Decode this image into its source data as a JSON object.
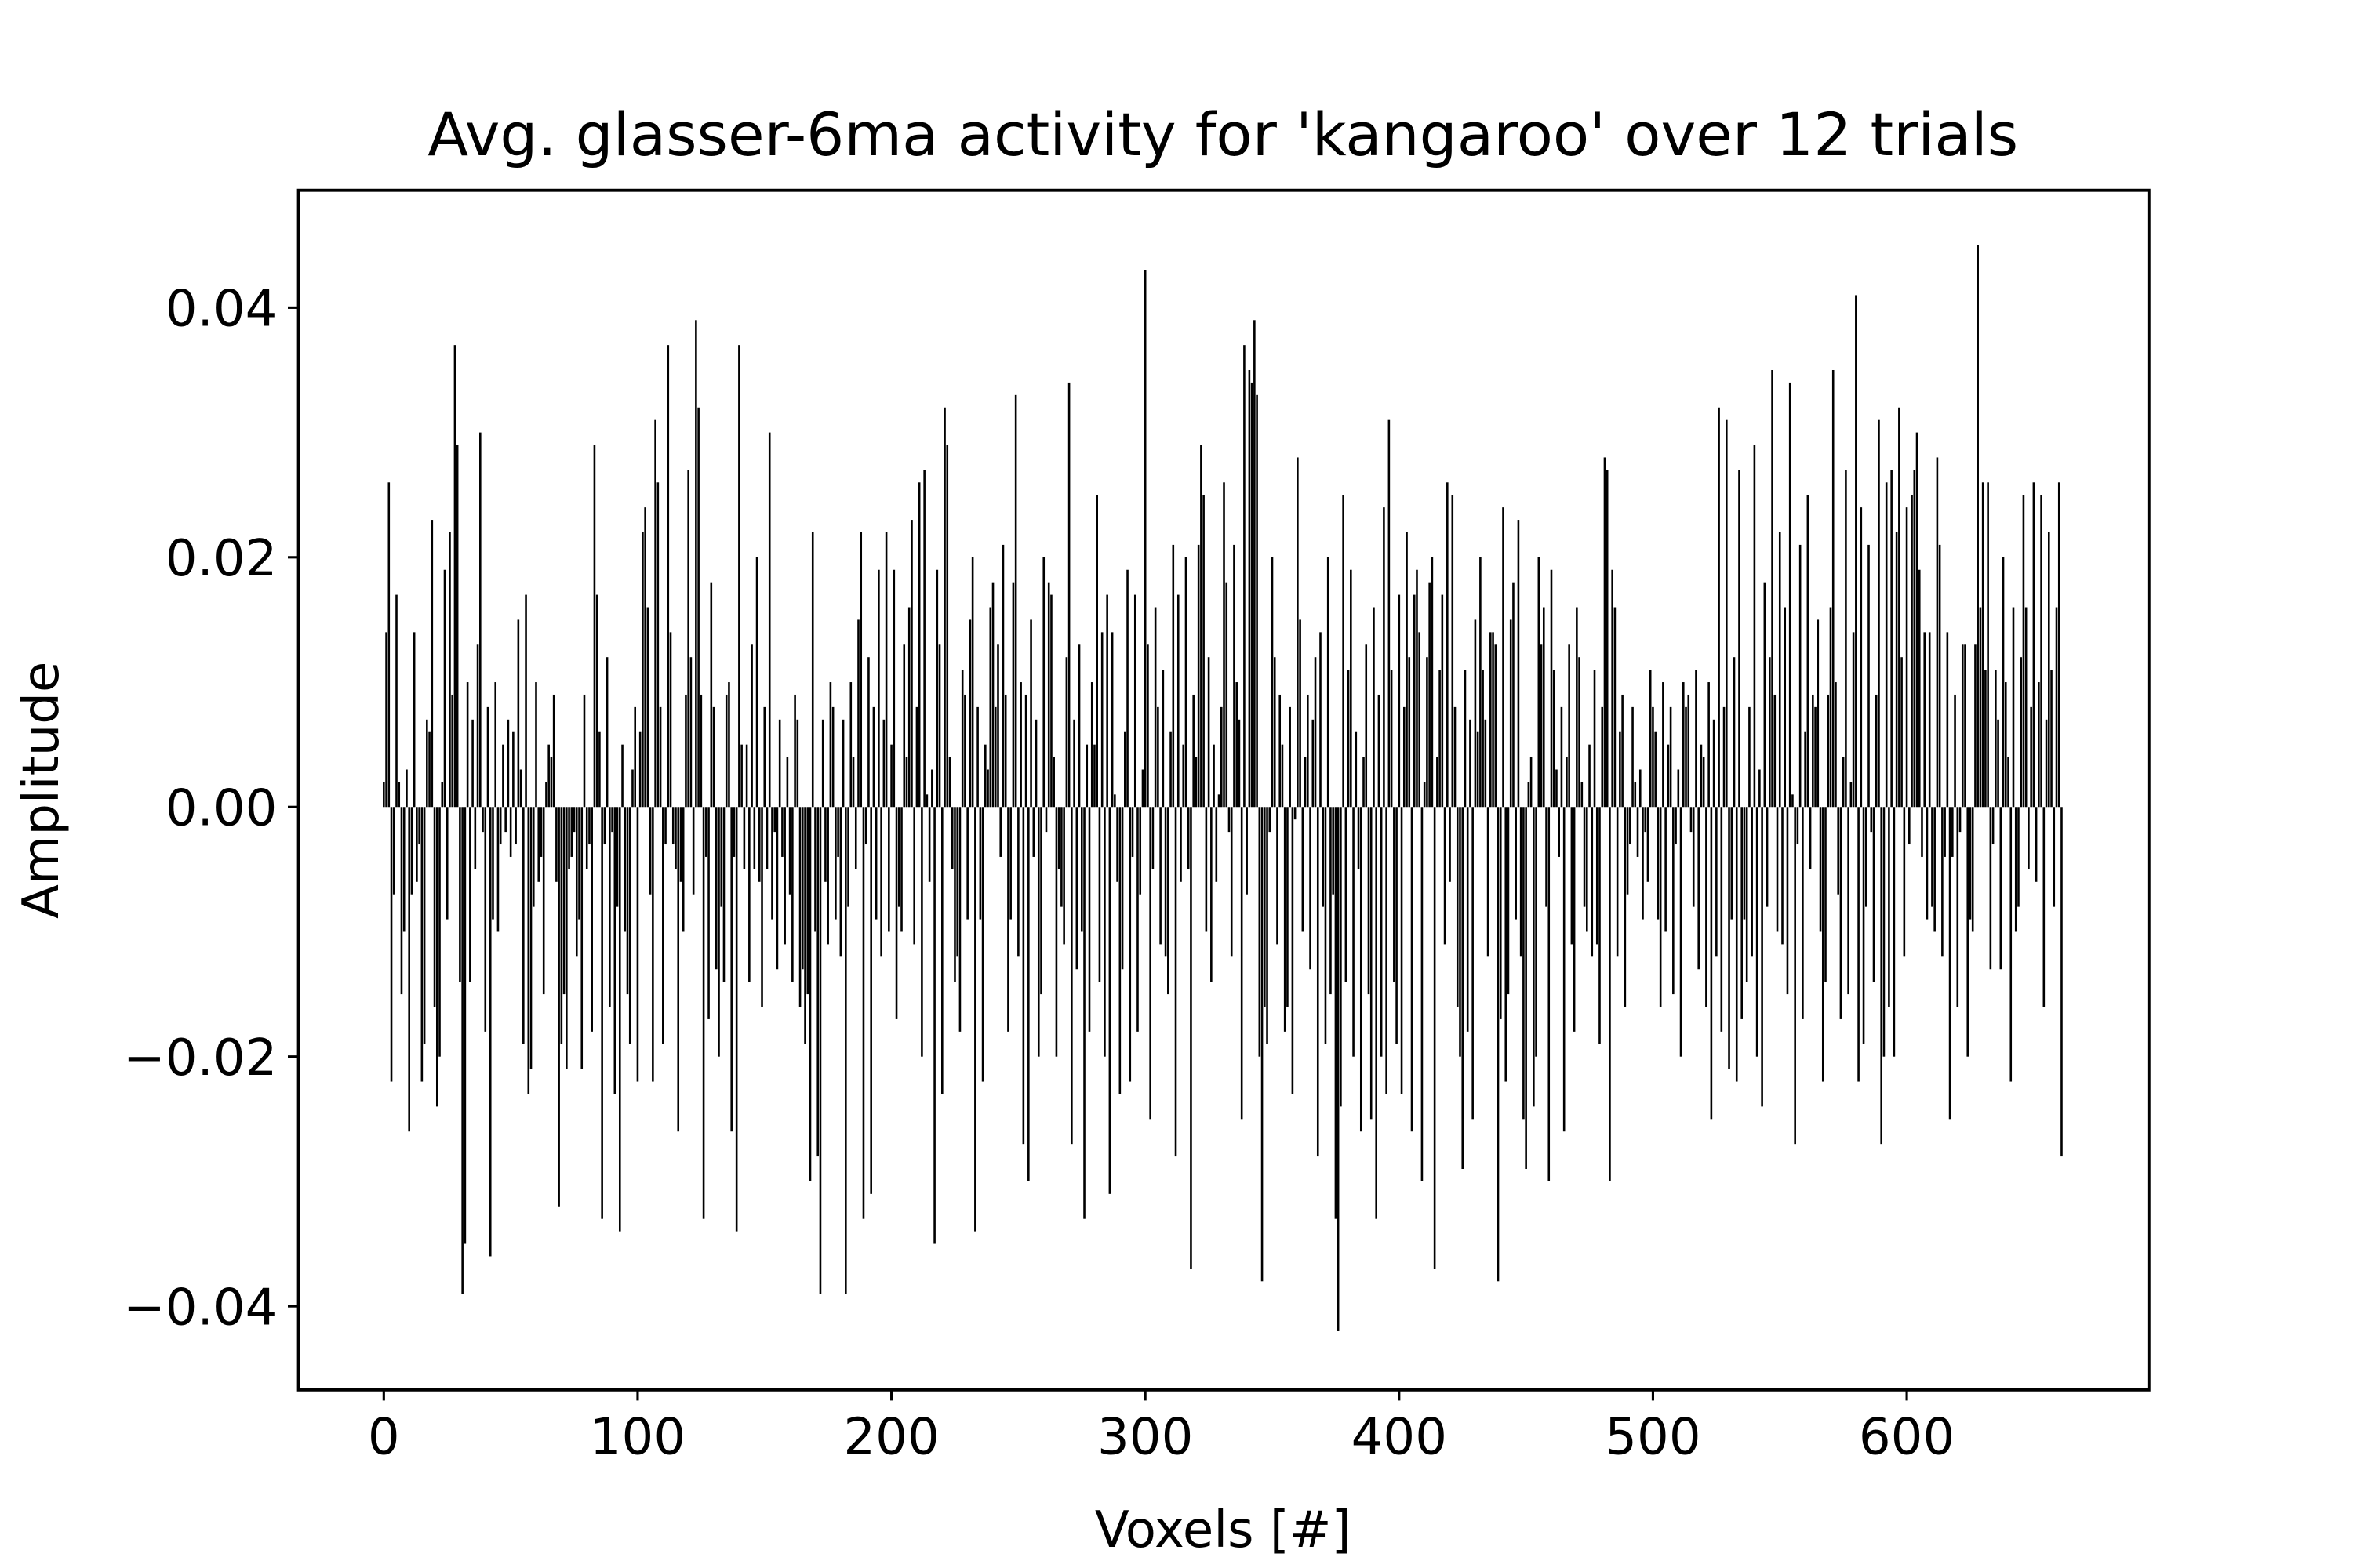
{
  "chart_data": {
    "type": "bar",
    "title": "Avg. glasser-6ma activity for 'kangaroo' over 12 trials",
    "xlabel": "Voxels [#]",
    "ylabel": "Amplitude",
    "color": "#000000",
    "xlim": [
      -33.6,
      695.4
    ],
    "ylim": [
      -0.0467,
      0.0494
    ],
    "xticks": [
      0,
      100,
      200,
      300,
      400,
      500,
      600
    ],
    "yticks": [
      {
        "value": -0.04,
        "label": "−0.04"
      },
      {
        "value": -0.02,
        "label": "−0.02"
      },
      {
        "value": 0,
        "label": "0.00"
      },
      {
        "value": 0.02,
        "label": "0.02"
      },
      {
        "value": 0.04,
        "label": "0.04"
      }
    ],
    "x": [
      0,
      1,
      2,
      3,
      4,
      5,
      6,
      7,
      8,
      9,
      10,
      11,
      12,
      13,
      14,
      15,
      16,
      17,
      18,
      19,
      20,
      21,
      22,
      23,
      24,
      25,
      26,
      27,
      28,
      29,
      30,
      31,
      32,
      33,
      34,
      35,
      36,
      37,
      38,
      39,
      40,
      41,
      42,
      43,
      44,
      45,
      46,
      47,
      48,
      49,
      50,
      51,
      52,
      53,
      54,
      55,
      56,
      57,
      58,
      59,
      60,
      61,
      62,
      63,
      64,
      65,
      66,
      67,
      68,
      69,
      70,
      71,
      72,
      73,
      74,
      75,
      76,
      77,
      78,
      79,
      80,
      81,
      82,
      83,
      84,
      85,
      86,
      87,
      88,
      89,
      90,
      91,
      92,
      93,
      94,
      95,
      96,
      97,
      98,
      99,
      100,
      101,
      102,
      103,
      104,
      105,
      106,
      107,
      108,
      109,
      110,
      111,
      112,
      113,
      114,
      115,
      116,
      117,
      118,
      119,
      120,
      121,
      122,
      123,
      124,
      125,
      126,
      127,
      128,
      129,
      130,
      131,
      132,
      133,
      134,
      135,
      136,
      137,
      138,
      139,
      140,
      141,
      142,
      143,
      144,
      145,
      146,
      147,
      148,
      149,
      150,
      151,
      152,
      153,
      154,
      155,
      156,
      157,
      158,
      159,
      160,
      161,
      162,
      163,
      164,
      165,
      166,
      167,
      168,
      169,
      170,
      171,
      172,
      173,
      174,
      175,
      176,
      177,
      178,
      179,
      180,
      181,
      182,
      183,
      184,
      185,
      186,
      187,
      188,
      189,
      190,
      191,
      192,
      193,
      194,
      195,
      196,
      197,
      198,
      199,
      200,
      201,
      202,
      203,
      204,
      205,
      206,
      207,
      208,
      209,
      210,
      211,
      212,
      213,
      214,
      215,
      216,
      217,
      218,
      219,
      220,
      221,
      222,
      223,
      224,
      225,
      226,
      227,
      228,
      229,
      230,
      231,
      232,
      233,
      234,
      235,
      236,
      237,
      238,
      239,
      240,
      241,
      242,
      243,
      244,
      245,
      246,
      247,
      248,
      249,
      250,
      251,
      252,
      253,
      254,
      255,
      256,
      257,
      258,
      259,
      260,
      261,
      262,
      263,
      264,
      265,
      266,
      267,
      268,
      269,
      270,
      271,
      272,
      273,
      274,
      275,
      276,
      277,
      278,
      279,
      280,
      281,
      282,
      283,
      284,
      285,
      286,
      287,
      288,
      289,
      290,
      291,
      292,
      293,
      294,
      295,
      296,
      297,
      298,
      299,
      300,
      301,
      302,
      303,
      304,
      305,
      306,
      307,
      308,
      309,
      310,
      311,
      312,
      313,
      314,
      315,
      316,
      317,
      318,
      319,
      320,
      321,
      322,
      323,
      324,
      325,
      326,
      327,
      328,
      329,
      330,
      331,
      332,
      333,
      334,
      335,
      336,
      337,
      338,
      339,
      340,
      341,
      342,
      343,
      344,
      345,
      346,
      347,
      348,
      349,
      350,
      351,
      352,
      353,
      354,
      355,
      356,
      357,
      358,
      359,
      360,
      361,
      362,
      363,
      364,
      365,
      366,
      367,
      368,
      369,
      370,
      371,
      372,
      373,
      374,
      375,
      376,
      377,
      378,
      379,
      380,
      381,
      382,
      383,
      384,
      385,
      386,
      387,
      388,
      389,
      390,
      391,
      392,
      393,
      394,
      395,
      396,
      397,
      398,
      399,
      400,
      401,
      402,
      403,
      404,
      405,
      406,
      407,
      408,
      409,
      410,
      411,
      412,
      413,
      414,
      415,
      416,
      417,
      418,
      419,
      420,
      421,
      422,
      423,
      424,
      425,
      426,
      427,
      428,
      429,
      430,
      431,
      432,
      433,
      434,
      435,
      436,
      437,
      438,
      439,
      440,
      441,
      442,
      443,
      444,
      445,
      446,
      447,
      448,
      449,
      450,
      451,
      452,
      453,
      454,
      455,
      456,
      457,
      458,
      459,
      460,
      461,
      462,
      463,
      464,
      465,
      466,
      467,
      468,
      469,
      470,
      471,
      472,
      473,
      474,
      475,
      476,
      477,
      478,
      479,
      480,
      481,
      482,
      483,
      484,
      485,
      486,
      487,
      488,
      489,
      490,
      491,
      492,
      493,
      494,
      495,
      496,
      497,
      498,
      499,
      500,
      501,
      502,
      503,
      504,
      505,
      506,
      507,
      508,
      509,
      510,
      511,
      512,
      513,
      514,
      515,
      516,
      517,
      518,
      519,
      520,
      521,
      522,
      523,
      524,
      525,
      526,
      527,
      528,
      529,
      530,
      531,
      532,
      533,
      534,
      535,
      536,
      537,
      538,
      539,
      540,
      541,
      542,
      543,
      544,
      545,
      546,
      547,
      548,
      549,
      550,
      551,
      552,
      553,
      554,
      555,
      556,
      557,
      558,
      559,
      560,
      561,
      562,
      563,
      564,
      565,
      566,
      567,
      568,
      569,
      570,
      571,
      572,
      573,
      574,
      575,
      576,
      577,
      578,
      579,
      580,
      581,
      582,
      583,
      584,
      585,
      586,
      587,
      588,
      589,
      590,
      591,
      592,
      593,
      594,
      595,
      596,
      597,
      598,
      599,
      600,
      601,
      602,
      603,
      604,
      605,
      606,
      607,
      608,
      609,
      610,
      611,
      612,
      613,
      614,
      615,
      616,
      617,
      618,
      619,
      620,
      621,
      622,
      623,
      624,
      625,
      626,
      627,
      628,
      629,
      630,
      631,
      632,
      633,
      634,
      635,
      636,
      637,
      638,
      639,
      640,
      641,
      642,
      643,
      644,
      645,
      646,
      647,
      648,
      649,
      650,
      651,
      652,
      653,
      654,
      655,
      656,
      657,
      658,
      659,
      660,
      661
    ],
    "values": [
      0.002,
      0.014,
      0.026,
      -0.022,
      -0.007,
      0.017,
      0.002,
      -0.015,
      -0.01,
      0.003,
      -0.026,
      -0.007,
      0.014,
      -0.006,
      -0.003,
      -0.022,
      -0.019,
      0.007,
      0.006,
      0.023,
      -0.016,
      -0.024,
      -0.02,
      0.002,
      0.019,
      -0.009,
      0.022,
      0.009,
      0.037,
      0.029,
      -0.014,
      -0.039,
      -0.035,
      0.01,
      -0.014,
      0.007,
      -0.005,
      0.013,
      0.03,
      -0.002,
      -0.018,
      0.008,
      -0.036,
      -0.009,
      0.01,
      -0.01,
      -0.003,
      0.005,
      -0.002,
      0.007,
      -0.004,
      0.006,
      -0.003,
      0.015,
      0.003,
      -0.019,
      0.017,
      -0.023,
      -0.021,
      -0.008,
      0.01,
      -0.006,
      -0.004,
      -0.015,
      0.002,
      0.005,
      0.004,
      0.009,
      -0.006,
      -0.032,
      -0.019,
      -0.015,
      -0.021,
      -0.005,
      -0.004,
      -0.002,
      -0.012,
      -0.009,
      -0.021,
      0.009,
      -0.005,
      -0.003,
      -0.018,
      0.029,
      0.017,
      0.006,
      -0.033,
      -0.003,
      0.012,
      -0.016,
      -0.002,
      -0.023,
      -0.008,
      -0.034,
      0.005,
      -0.01,
      -0.015,
      -0.019,
      0.003,
      0.008,
      -0.022,
      0.006,
      0.022,
      0.024,
      0.016,
      -0.007,
      -0.022,
      0.031,
      0.026,
      0.008,
      -0.019,
      -0.003,
      0.037,
      0.014,
      -0.003,
      -0.005,
      -0.026,
      -0.006,
      -0.01,
      0.009,
      0.027,
      0.012,
      -0.007,
      0.039,
      0.032,
      0.009,
      -0.033,
      -0.004,
      -0.017,
      0.018,
      0.008,
      -0.013,
      -0.02,
      -0.008,
      -0.014,
      0.009,
      0.01,
      -0.026,
      -0.004,
      -0.034,
      0.037,
      0.005,
      -0.005,
      0.005,
      -0.014,
      0.013,
      -0.005,
      0.02,
      -0.006,
      -0.016,
      0.008,
      -0.005,
      0.03,
      -0.009,
      -0.002,
      -0.013,
      0.007,
      -0.004,
      -0.011,
      0.004,
      -0.007,
      -0.014,
      0.009,
      0.007,
      -0.016,
      -0.013,
      -0.019,
      -0.015,
      -0.03,
      0.022,
      -0.01,
      -0.028,
      -0.039,
      0.007,
      -0.006,
      -0.011,
      0.01,
      0.008,
      -0.009,
      -0.004,
      -0.012,
      0.007,
      -0.039,
      -0.008,
      0.01,
      0.004,
      -0.005,
      0.015,
      0.022,
      -0.033,
      -0.003,
      0.012,
      -0.031,
      0.008,
      -0.009,
      0.019,
      -0.012,
      0.007,
      0.022,
      -0.01,
      0.005,
      0.019,
      -0.017,
      -0.008,
      -0.01,
      0.013,
      0.004,
      0.016,
      0.023,
      -0.011,
      0.008,
      0.026,
      -0.02,
      0.027,
      0.001,
      -0.006,
      0.003,
      -0.035,
      0.019,
      0.013,
      -0.023,
      0.032,
      0.029,
      0.004,
      -0.005,
      -0.014,
      -0.012,
      -0.018,
      0.011,
      0.009,
      -0.009,
      0.015,
      0.02,
      -0.034,
      0.008,
      -0.009,
      -0.022,
      0.005,
      0.003,
      0.016,
      0.018,
      0.008,
      0.013,
      -0.004,
      0.021,
      0.009,
      -0.018,
      -0.009,
      0.018,
      0.033,
      -0.012,
      0.01,
      -0.027,
      0.009,
      -0.03,
      0.015,
      -0.004,
      0.007,
      -0.02,
      -0.015,
      0.02,
      -0.002,
      0.018,
      0.017,
      0.004,
      -0.02,
      -0.005,
      -0.008,
      -0.011,
      0.012,
      0.034,
      -0.027,
      0.007,
      -0.013,
      0.013,
      -0.01,
      -0.033,
      0.005,
      -0.018,
      0.01,
      0.005,
      0.025,
      -0.014,
      0.014,
      -0.02,
      0.017,
      -0.031,
      0.014,
      0.001,
      -0.006,
      -0.023,
      -0.013,
      0.006,
      0.019,
      -0.022,
      -0.004,
      0.017,
      -0.018,
      -0.007,
      0.003,
      0.043,
      0.013,
      -0.025,
      -0.005,
      0.016,
      0.008,
      -0.011,
      0.011,
      -0.012,
      -0.015,
      0.006,
      0.021,
      -0.028,
      0.017,
      -0.006,
      0.005,
      0.02,
      -0.005,
      -0.037,
      0.009,
      0.004,
      0.021,
      0.029,
      0.025,
      -0.01,
      0.012,
      -0.014,
      0.005,
      -0.006,
      0.001,
      0.008,
      0.026,
      0.018,
      -0.002,
      -0.012,
      0.021,
      0.01,
      0.007,
      -0.025,
      0.037,
      -0.007,
      0.035,
      0.034,
      0.039,
      0.033,
      -0.02,
      -0.038,
      -0.016,
      -0.019,
      -0.002,
      0.02,
      0.012,
      -0.011,
      0.009,
      0.005,
      -0.018,
      -0.016,
      0.008,
      -0.023,
      -0.001,
      0.028,
      0.015,
      -0.01,
      0.004,
      0.009,
      -0.013,
      0.007,
      0.012,
      -0.028,
      0.014,
      -0.008,
      -0.019,
      0.02,
      -0.015,
      -0.007,
      -0.033,
      -0.042,
      -0.024,
      0.025,
      -0.014,
      0.011,
      0.019,
      -0.02,
      0.006,
      -0.005,
      -0.026,
      0.004,
      0.013,
      -0.015,
      -0.025,
      0.016,
      -0.033,
      0.009,
      -0.02,
      0.024,
      -0.023,
      0.031,
      0.011,
      -0.014,
      -0.019,
      0.017,
      -0.023,
      0.008,
      0.022,
      0.012,
      -0.026,
      0.017,
      0.019,
      0.014,
      -0.03,
      0.002,
      0.012,
      0.018,
      0.02,
      -0.037,
      0.004,
      0.011,
      0.017,
      -0.011,
      0.026,
      -0.006,
      0.025,
      0.008,
      -0.016,
      -0.02,
      -0.029,
      0.011,
      -0.018,
      0.007,
      -0.025,
      0.015,
      0.006,
      0.02,
      0.011,
      0.007,
      -0.012,
      0.014,
      0.014,
      0.013,
      -0.038,
      -0.017,
      0.024,
      -0.022,
      -0.015,
      0.015,
      0.018,
      -0.009,
      0.023,
      -0.012,
      -0.025,
      -0.029,
      0.002,
      0.004,
      -0.024,
      -0.02,
      0.02,
      0.013,
      0.016,
      -0.008,
      -0.03,
      0.019,
      0.011,
      0.003,
      -0.004,
      0.008,
      -0.026,
      0.004,
      0.013,
      -0.011,
      -0.018,
      0.016,
      0.012,
      0.002,
      -0.008,
      -0.01,
      0.005,
      -0.012,
      0.011,
      -0.011,
      -0.019,
      0.008,
      0.028,
      0.027,
      -0.03,
      0.019,
      0.016,
      -0.012,
      0.006,
      0.009,
      -0.016,
      -0.007,
      -0.003,
      0.008,
      0.002,
      -0.004,
      0.003,
      -0.009,
      -0.002,
      -0.006,
      0.011,
      0.008,
      0.006,
      -0.009,
      -0.016,
      0.01,
      -0.01,
      0.005,
      0.008,
      -0.015,
      -0.003,
      0.003,
      -0.02,
      0.01,
      0.008,
      0.009,
      -0.002,
      -0.008,
      0.011,
      -0.013,
      0.005,
      0.004,
      -0.016,
      0.01,
      -0.025,
      0.007,
      -0.012,
      0.032,
      -0.018,
      0.008,
      0.031,
      -0.021,
      -0.009,
      0.012,
      -0.022,
      0.027,
      -0.017,
      -0.009,
      -0.014,
      0.008,
      -0.012,
      0.029,
      -0.02,
      0.003,
      -0.024,
      0.018,
      -0.008,
      0.012,
      0.035,
      0.009,
      -0.01,
      0.022,
      -0.011,
      0.016,
      -0.015,
      0.034,
      0.001,
      -0.027,
      -0.003,
      0.021,
      -0.017,
      0.006,
      0.025,
      -0.005,
      0.009,
      0.008,
      0.015,
      -0.01,
      -0.022,
      -0.014,
      0.009,
      0.016,
      0.035,
      0.01,
      -0.007,
      -0.017,
      0.004,
      0.027,
      -0.015,
      0.002,
      0.014,
      0.041,
      -0.022,
      0.024,
      -0.019,
      -0.008,
      0.021,
      -0.002,
      -0.014,
      0.009,
      0.031,
      -0.027,
      -0.02,
      0.026,
      -0.016,
      0.027,
      -0.02,
      0.022,
      0.032,
      0.012,
      -0.012,
      0.024,
      -0.003,
      0.025,
      0.027,
      0.03,
      0.019,
      -0.004,
      0.014,
      -0.009,
      0.014,
      -0.008,
      -0.01,
      0.028,
      0.021,
      -0.012,
      -0.004,
      0.014,
      -0.025,
      -0.004,
      0.009,
      -0.016,
      -0.002,
      0.013,
      0.013,
      -0.02,
      -0.009,
      -0.01,
      0.013,
      0.045,
      0.016,
      0.026,
      0.011,
      0.026,
      -0.013,
      -0.003,
      0.011,
      0.007,
      -0.013,
      0.02,
      0.01,
      0.004,
      -0.022,
      0.016,
      -0.01,
      -0.008,
      0.012,
      0.025,
      0.016,
      -0.005,
      0.008,
      0.026,
      -0.006,
      0.01,
      0.025,
      -0.016,
      0.007,
      0.022,
      0.011,
      -0.008,
      0.016,
      0.026,
      -0.028
    ]
  }
}
